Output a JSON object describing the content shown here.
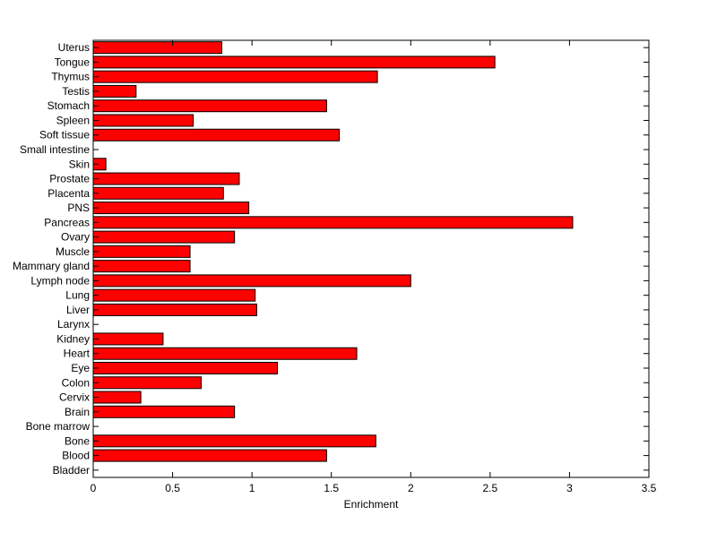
{
  "chart_data": {
    "type": "bar",
    "orientation": "horizontal",
    "categories": [
      "Uterus",
      "Tongue",
      "Thymus",
      "Testis",
      "Stomach",
      "Spleen",
      "Soft tissue",
      "Small intestine",
      "Skin",
      "Prostate",
      "Placenta",
      "PNS",
      "Pancreas",
      "Ovary",
      "Muscle",
      "Mammary gland",
      "Lymph node",
      "Lung",
      "Liver",
      "Larynx",
      "Kidney",
      "Heart",
      "Eye",
      "Colon",
      "Cervix",
      "Brain",
      "Bone marrow",
      "Bone",
      "Blood",
      "Bladder"
    ],
    "values": [
      0.81,
      2.53,
      1.79,
      0.27,
      1.47,
      0.63,
      1.55,
      0,
      0.08,
      0.92,
      0.82,
      0.98,
      3.02,
      0.89,
      0.61,
      0.61,
      2.0,
      1.02,
      1.03,
      0,
      0.44,
      1.66,
      1.16,
      0.68,
      0.3,
      0.89,
      0,
      1.78,
      1.47,
      0
    ],
    "xlabel": "Enrichment",
    "ylabel": "",
    "title": "",
    "xlim": [
      0,
      3.5
    ],
    "xticks": [
      "0",
      "0.5",
      "1",
      "1.5",
      "2",
      "2.5",
      "3",
      "3.5"
    ],
    "grid": false,
    "colors": {
      "bar": "#ff0000",
      "edge": "#000000",
      "axis": "#000000"
    }
  }
}
